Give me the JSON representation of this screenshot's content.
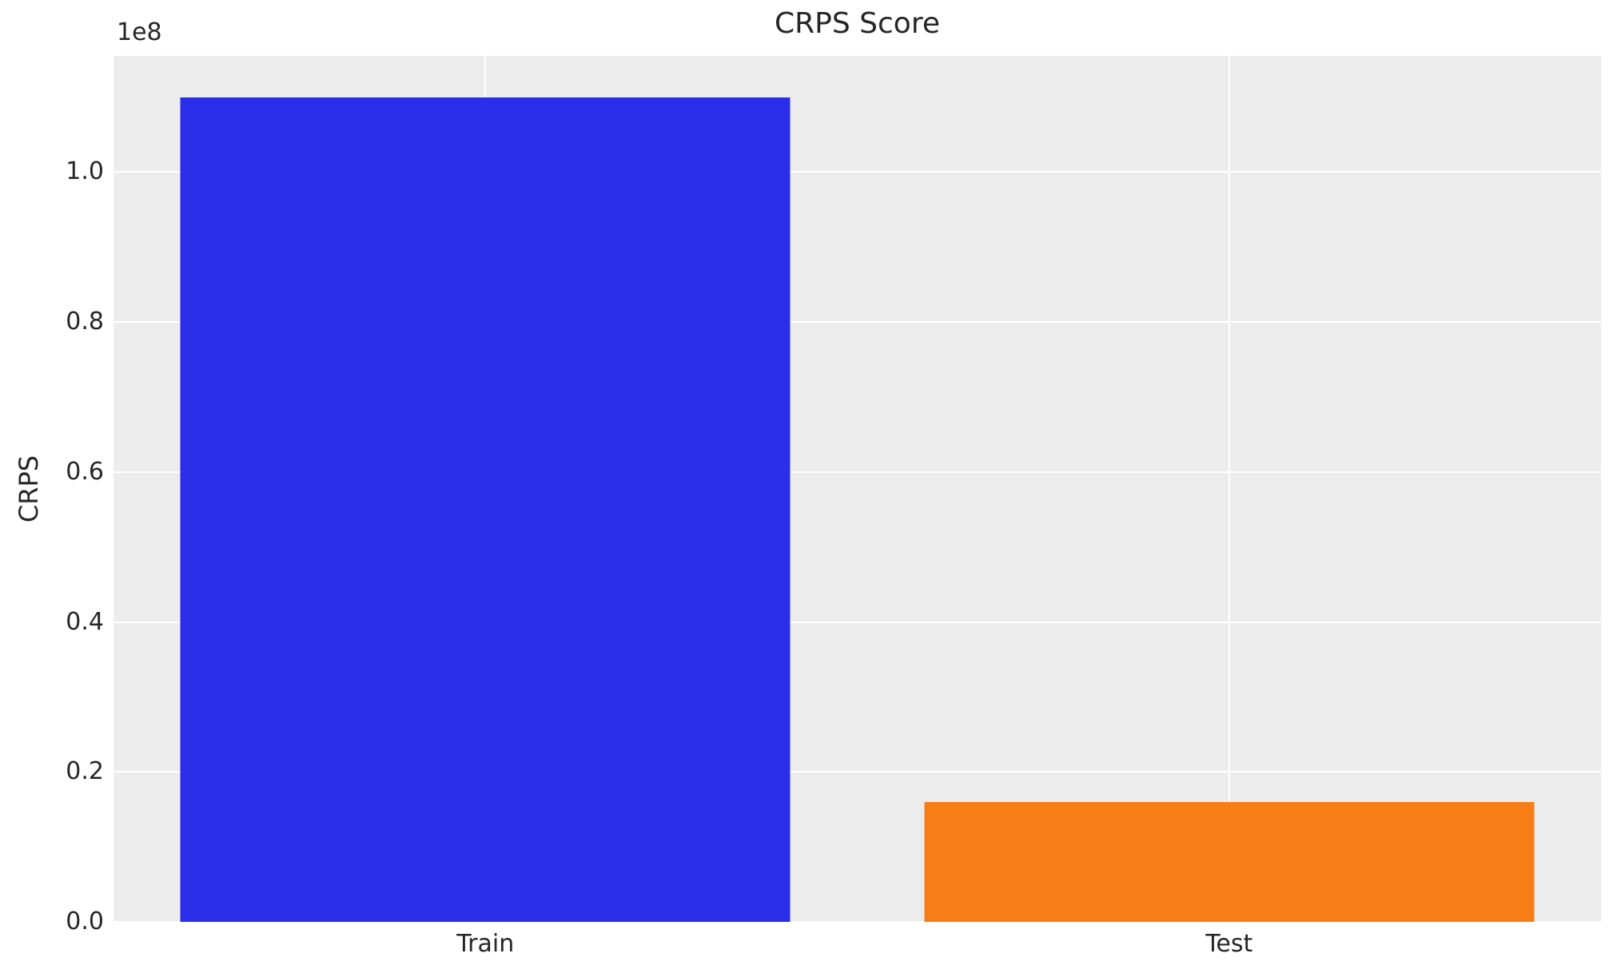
{
  "chart_data": {
    "type": "bar",
    "title": "CRPS Score",
    "categories": [
      "Train",
      "Test"
    ],
    "values": [
      110000000,
      16000000
    ],
    "bar_colors": [
      "#2b2ee8",
      "#f87d16"
    ],
    "ylabel": "CRPS",
    "y_offset_label": "1e8",
    "ylim": [
      0,
      115500000
    ],
    "yticks": [
      0,
      20000000,
      40000000,
      60000000,
      80000000,
      100000000
    ],
    "ytick_labels": [
      "0.0",
      "0.2",
      "0.4",
      "0.6",
      "0.8",
      "1.0"
    ],
    "grid": true,
    "grid_color": "#ffffff",
    "plot_background": "#ececec",
    "text_color": "#262626",
    "bar_width_fraction": 0.82,
    "legend_position": "none"
  }
}
